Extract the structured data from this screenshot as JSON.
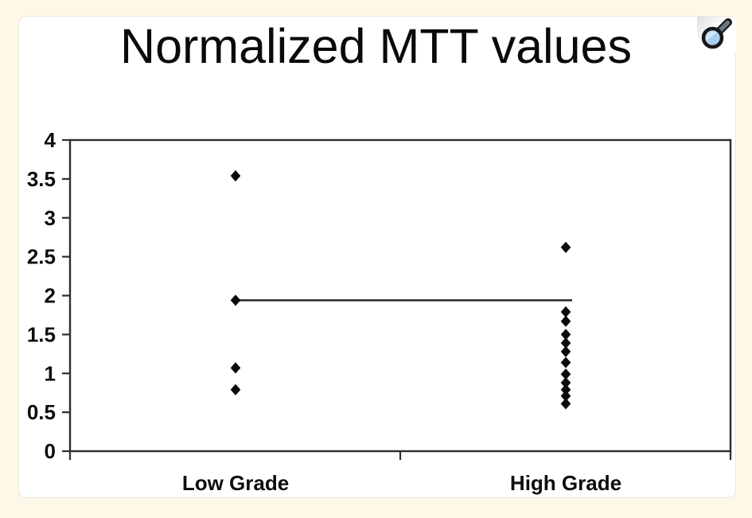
{
  "page": {
    "background_color": "#FDF8E7",
    "panel_color": "#FFFFFF"
  },
  "header": {
    "title": "Normalized MTT values"
  },
  "zoom_button": {
    "icon": "magnifier-icon",
    "lens_color": "#A9CDEE",
    "lens_highlight_color": "#CFE6F8",
    "handle_color": "#6b7682",
    "outline_color": "#161616"
  },
  "chart_data": {
    "type": "scatter",
    "title": "Normalized MTT values",
    "categories": [
      "Low Grade",
      "High Grade"
    ],
    "series": [
      {
        "name": "Low Grade",
        "values": [
          3.54,
          1.94,
          1.07,
          0.79
        ]
      },
      {
        "name": "High Grade",
        "values": [
          2.62,
          1.79,
          1.67,
          1.5,
          1.39,
          1.28,
          1.14,
          0.99,
          0.88,
          0.79,
          0.71,
          0.61
        ]
      }
    ],
    "reference_line": {
      "value": 1.94,
      "from_category": "Low Grade",
      "to_category": "High Grade"
    },
    "ylim": [
      0,
      4
    ],
    "yticks": [
      0,
      0.5,
      1,
      1.5,
      2,
      2.5,
      3,
      3.5,
      4
    ],
    "marker": "diamond",
    "marker_color": "#0b0b0b",
    "axis_color": "#2e2e2e",
    "grid": false,
    "legend": "none"
  }
}
